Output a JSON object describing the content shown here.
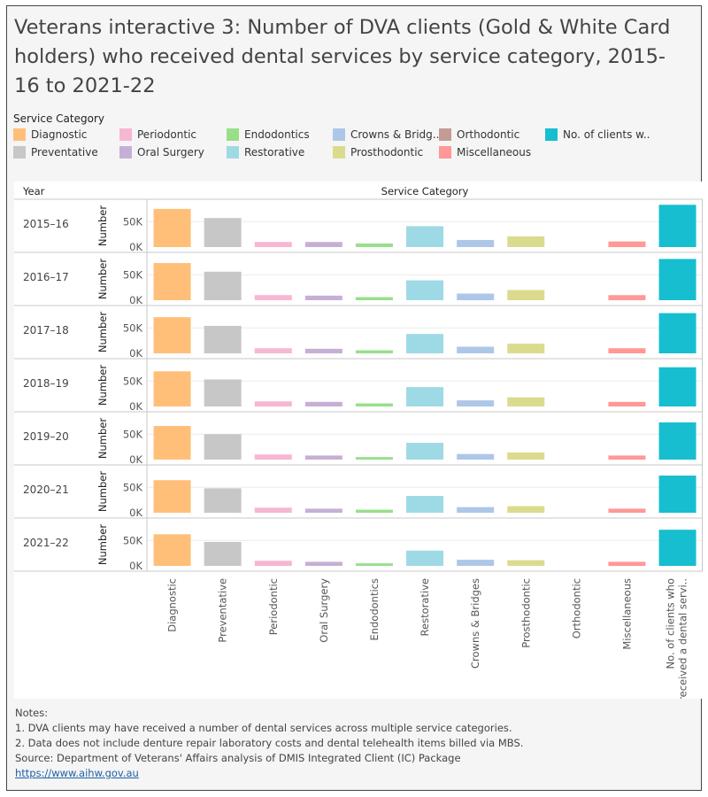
{
  "title": "Veterans interactive 3: Number of DVA clients (Gold & White Card holders) who received dental services by service category, 2015-16 to 2021-22",
  "legend": {
    "title": "Service Category",
    "items": [
      {
        "label": "Diagnostic",
        "color": "#FFBF79"
      },
      {
        "label": "Periodontic",
        "color": "#F7B6D2"
      },
      {
        "label": "Endodontics",
        "color": "#98DF8A"
      },
      {
        "label": "Crowns & Bridg..",
        "color": "#AEC7E8"
      },
      {
        "label": "Orthodontic",
        "color": "#C49C94"
      },
      {
        "label": "No. of clients w..",
        "color": "#17BECF"
      },
      {
        "label": "Preventative",
        "color": "#C7C7C7"
      },
      {
        "label": "Oral Surgery",
        "color": "#C5B0D5"
      },
      {
        "label": "Restorative",
        "color": "#9EDAE5"
      },
      {
        "label": "Prosthodontic",
        "color": "#DBDB8D"
      },
      {
        "label": "Miscellaneous",
        "color": "#FF9896"
      }
    ]
  },
  "chart_data": {
    "type": "bar",
    "row_header": "Year",
    "column_header": "Service Category",
    "ylabel": "Number",
    "yticks": [
      "50K",
      "0K"
    ],
    "ylim": [
      0,
      85000
    ],
    "grid": true,
    "categories": [
      "Diagnostic",
      "Preventative",
      "Periodontic",
      "Oral Surgery",
      "Endodontics",
      "Restorative",
      "Crowns & Bridges",
      "Prosthodontic",
      "Orthodontic",
      "Miscellaneous",
      "No. of clients who received a dental servi.."
    ],
    "colors": [
      "#FFBF79",
      "#C7C7C7",
      "#F7B6D2",
      "#C5B0D5",
      "#98DF8A",
      "#9EDAE5",
      "#AEC7E8",
      "#DBDB8D",
      "#C49C94",
      "#FF9896",
      "#17BECF"
    ],
    "series": [
      {
        "name": "2015–16",
        "values": [
          75000,
          57000,
          10000,
          10000,
          7000,
          41000,
          14000,
          21000,
          0,
          11000,
          83000
        ]
      },
      {
        "name": "2016–17",
        "values": [
          73000,
          56000,
          10000,
          9000,
          6000,
          39000,
          13000,
          20000,
          0,
          10000,
          81000
        ]
      },
      {
        "name": "2017–18",
        "values": [
          71000,
          54000,
          10000,
          9000,
          6000,
          38000,
          13000,
          19000,
          0,
          10000,
          79000
        ]
      },
      {
        "name": "2018–19",
        "values": [
          69000,
          53000,
          10000,
          9000,
          6000,
          38000,
          12000,
          18000,
          0,
          9000,
          77000
        ]
      },
      {
        "name": "2019–20",
        "values": [
          66000,
          50000,
          10000,
          8000,
          5000,
          33000,
          11000,
          14000,
          0,
          8000,
          73000
        ]
      },
      {
        "name": "2020–21",
        "values": [
          64000,
          48000,
          10000,
          8000,
          6000,
          33000,
          11000,
          13000,
          0,
          8000,
          73000
        ]
      },
      {
        "name": "2021–22",
        "values": [
          62000,
          47000,
          10000,
          8000,
          5000,
          30000,
          12000,
          11000,
          0,
          8000,
          71000
        ]
      }
    ]
  },
  "notes": {
    "heading": "Notes:",
    "lines": [
      "1. DVA clients may have received a number of dental services across multiple service categories.",
      "2. Data does not include denture repair laboratory costs and dental telehealth items billed via MBS.",
      "Source: Department of Veterans' Affairs analysis of DMIS Integrated Client (IC) Package"
    ],
    "link": "https://www.aihw.gov.au"
  }
}
